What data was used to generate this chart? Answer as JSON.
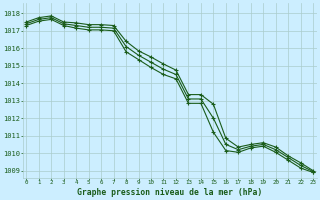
{
  "title": "Graphe pression niveau de la mer (hPa)",
  "background_color": "#cceeff",
  "grid_color": "#aacccc",
  "line_color": "#1a5c1a",
  "x_labels": [
    "0",
    "1",
    "2",
    "3",
    "4",
    "5",
    "6",
    "7",
    "8",
    "9",
    "10",
    "11",
    "12",
    "13",
    "14",
    "15",
    "16",
    "17",
    "18",
    "19",
    "20",
    "21",
    "22",
    "23"
  ],
  "hours": [
    0,
    1,
    2,
    3,
    4,
    5,
    6,
    7,
    8,
    9,
    10,
    11,
    12,
    13,
    14,
    15,
    16,
    17,
    18,
    19,
    20,
    21,
    22,
    23
  ],
  "line_top": [
    1017.5,
    1017.75,
    1017.85,
    1017.5,
    1017.45,
    1017.35,
    1017.35,
    1017.3,
    1016.4,
    1015.85,
    1015.5,
    1015.1,
    1014.75,
    1013.35,
    1013.35,
    1012.8,
    1010.85,
    1010.35,
    1010.5,
    1010.6,
    1010.35,
    1009.85,
    1009.45,
    1009.0
  ],
  "line_mid": [
    1017.4,
    1017.65,
    1017.75,
    1017.4,
    1017.3,
    1017.2,
    1017.2,
    1017.15,
    1016.1,
    1015.6,
    1015.2,
    1014.8,
    1014.5,
    1013.1,
    1013.1,
    1012.0,
    1010.5,
    1010.2,
    1010.4,
    1010.5,
    1010.2,
    1009.75,
    1009.3,
    1008.95
  ],
  "line_bot": [
    1017.3,
    1017.55,
    1017.65,
    1017.3,
    1017.15,
    1017.05,
    1017.05,
    1017.0,
    1015.8,
    1015.35,
    1014.9,
    1014.5,
    1014.25,
    1012.85,
    1012.85,
    1011.2,
    1010.15,
    1010.05,
    1010.3,
    1010.4,
    1010.05,
    1009.6,
    1009.15,
    1008.9
  ],
  "ylim_min": 1008.6,
  "ylim_max": 1018.6,
  "yticks": [
    1009,
    1010,
    1011,
    1012,
    1013,
    1014,
    1015,
    1016,
    1017,
    1018
  ]
}
